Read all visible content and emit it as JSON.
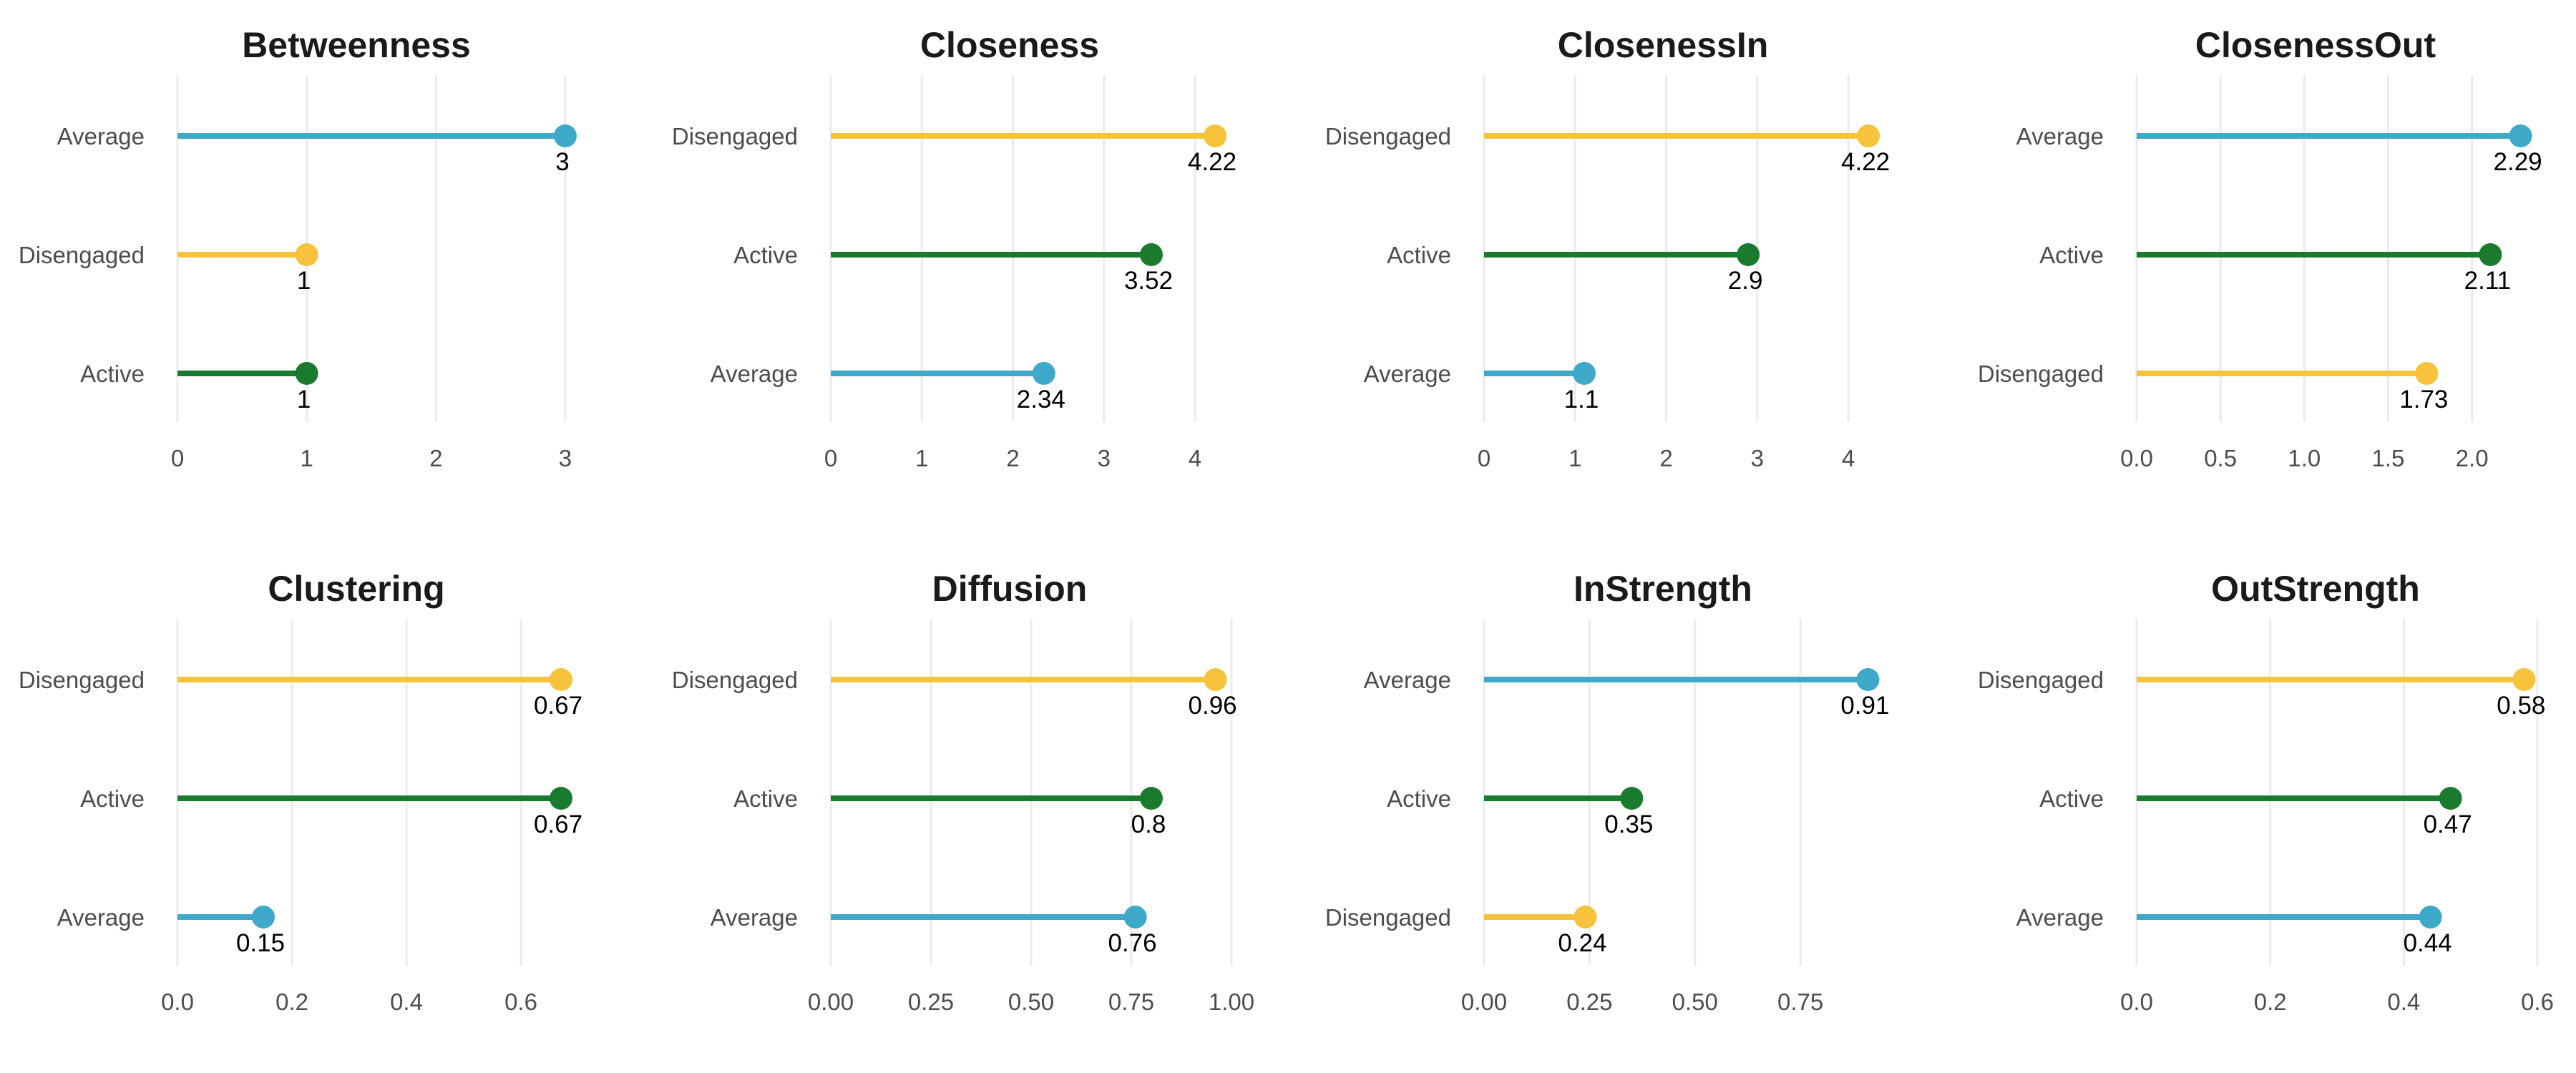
{
  "colors": {
    "Average": "#3ea9c8",
    "Disengaged": "#f7c23c",
    "Active": "#1a7a2e"
  },
  "chart_data": [
    {
      "type": "lollipop",
      "title": "Betweenness",
      "categories": [
        "Average",
        "Disengaged",
        "Active"
      ],
      "values": [
        3,
        1,
        1
      ],
      "value_labels": [
        "3",
        "1",
        "1"
      ],
      "xlim": [
        0,
        3.1
      ],
      "xticks": [
        0,
        1,
        2,
        3
      ],
      "xtick_labels": [
        "0",
        "1",
        "2",
        "3"
      ]
    },
    {
      "type": "lollipop",
      "title": "Closeness",
      "categories": [
        "Disengaged",
        "Active",
        "Average"
      ],
      "values": [
        4.22,
        3.52,
        2.34
      ],
      "value_labels": [
        "4.22",
        "3.52",
        "2.34"
      ],
      "xlim": [
        0,
        4.4
      ],
      "xticks": [
        0,
        1,
        2,
        3,
        4
      ],
      "xtick_labels": [
        "0",
        "1",
        "2",
        "3",
        "4"
      ]
    },
    {
      "type": "lollipop",
      "title": "ClosenessIn",
      "categories": [
        "Disengaged",
        "Active",
        "Average"
      ],
      "values": [
        4.22,
        2.9,
        1.1
      ],
      "value_labels": [
        "4.22",
        "2.9",
        "1.1"
      ],
      "xlim": [
        0,
        4.4
      ],
      "xticks": [
        0,
        1,
        2,
        3,
        4
      ],
      "xtick_labels": [
        "0",
        "1",
        "2",
        "3",
        "4"
      ]
    },
    {
      "type": "lollipop",
      "title": "ClosenessOut",
      "categories": [
        "Average",
        "Active",
        "Disengaged"
      ],
      "values": [
        2.29,
        2.11,
        1.73
      ],
      "value_labels": [
        "2.29",
        "2.11",
        "1.73"
      ],
      "xlim": [
        0,
        2.39
      ],
      "xticks": [
        0,
        0.5,
        1.0,
        1.5,
        2.0
      ],
      "xtick_labels": [
        "0.0",
        "0.5",
        "1.0",
        "1.5",
        "2.0"
      ]
    },
    {
      "type": "lollipop",
      "title": "Clustering",
      "categories": [
        "Disengaged",
        "Active",
        "Average"
      ],
      "values": [
        0.67,
        0.67,
        0.15
      ],
      "value_labels": [
        "0.67",
        "0.67",
        "0.15"
      ],
      "xlim": [
        0,
        0.7
      ],
      "xticks": [
        0,
        0.2,
        0.4,
        0.6
      ],
      "xtick_labels": [
        "0.0",
        "0.2",
        "0.4",
        "0.6"
      ]
    },
    {
      "type": "lollipop",
      "title": "Diffusion",
      "categories": [
        "Disengaged",
        "Active",
        "Average"
      ],
      "values": [
        0.96,
        0.8,
        0.76
      ],
      "value_labels": [
        "0.96",
        "0.8",
        "0.76"
      ],
      "xlim": [
        0,
        1.0
      ],
      "xticks": [
        0,
        0.25,
        0.5,
        0.75,
        1.0
      ],
      "xtick_labels": [
        "0.00",
        "0.25",
        "0.50",
        "0.75",
        "1.00"
      ]
    },
    {
      "type": "lollipop",
      "title": "InStrength",
      "categories": [
        "Average",
        "Active",
        "Disengaged"
      ],
      "values": [
        0.91,
        0.35,
        0.24
      ],
      "value_labels": [
        "0.91",
        "0.35",
        "0.24"
      ],
      "xlim": [
        0,
        0.95
      ],
      "xticks": [
        0,
        0.25,
        0.5,
        0.75
      ],
      "xtick_labels": [
        "0.00",
        "0.25",
        "0.50",
        "0.75"
      ]
    },
    {
      "type": "lollipop",
      "title": "OutStrength",
      "categories": [
        "Disengaged",
        "Active",
        "Average"
      ],
      "values": [
        0.58,
        0.47,
        0.44
      ],
      "value_labels": [
        "0.58",
        "0.47",
        "0.44"
      ],
      "xlim": [
        0,
        0.6
      ],
      "xticks": [
        0,
        0.2,
        0.4,
        0.6
      ],
      "xtick_labels": [
        "0.0",
        "0.2",
        "0.4",
        "0.6"
      ]
    }
  ]
}
